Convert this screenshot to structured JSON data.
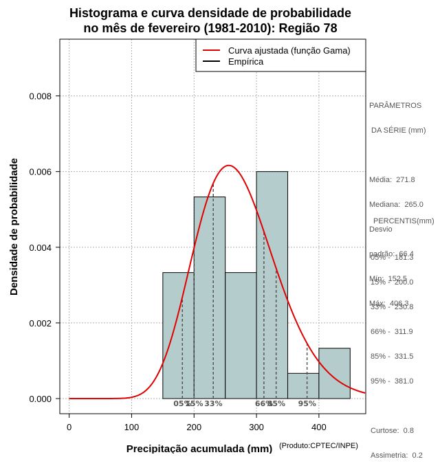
{
  "chart_data": {
    "type": "bar",
    "title_lines": [
      "Histograma e curva densidade de probabilidade",
      "no mês de fevereiro (1981-2010): Região 78"
    ],
    "xlabel": "Precipitação acumulada (mm)",
    "ylabel": "Densidade de probabilidade",
    "credit": "(Produto:CPTEC/INPE)",
    "xlim": [
      -15,
      475
    ],
    "ylim": [
      -0.0004,
      0.0095
    ],
    "xticks": [
      0,
      100,
      200,
      300,
      400
    ],
    "xtick_labels": [
      "0",
      "100",
      "200",
      "300",
      "400"
    ],
    "yticks": [
      0,
      0.002,
      0.004,
      0.006,
      0.008
    ],
    "ytick_labels": [
      "0.000",
      "0.002",
      "0.004",
      "0.006",
      "0.008"
    ],
    "grid": true,
    "bins": [
      {
        "from": 150,
        "to": 200,
        "density": 0.00333
      },
      {
        "from": 200,
        "to": 250,
        "density": 0.00533
      },
      {
        "from": 250,
        "to": 300,
        "density": 0.00333
      },
      {
        "from": 300,
        "to": 350,
        "density": 0.006
      },
      {
        "from": 350,
        "to": 400,
        "density": 0.000667
      },
      {
        "from": 400,
        "to": 450,
        "density": 0.00133
      }
    ],
    "bar_color": "#b4cccb",
    "fitted_curve": {
      "name": "Curva ajustada (função Gama)",
      "color": "#e00000",
      "mean": 271.8,
      "sd": 66.4,
      "x_range": [
        0,
        475
      ]
    },
    "empirical": {
      "name": "Empírica",
      "color": "#000000"
    },
    "legend_position": "top-right",
    "percentile_markers": [
      {
        "value": 181.3,
        "label": "05%"
      },
      {
        "value": 200.0,
        "label": "15%"
      },
      {
        "value": 230.8,
        "label": "33%"
      },
      {
        "value": 311.9,
        "label": "66%"
      },
      {
        "value": 331.5,
        "label": "85%"
      },
      {
        "value": 381.0,
        "label": "95%"
      }
    ]
  },
  "side_panel": {
    "params_title": [
      "PARÂMETROS",
      " DA SÉRIE (mm)"
    ],
    "params": [
      "Média:  271.8",
      "Mediana:  265.0",
      "Desvio",
      "padrão:  66.4",
      "Mín:  152.5",
      "Máx:  406.3"
    ],
    "percentis_title": "PERCENTIS(mm)",
    "percentis": [
      "05% -  181.3",
      "15% -  200.0",
      "33% -  230.8",
      "66% -  311.9",
      "85% -  331.5",
      "95% -  381.0"
    ],
    "stats": [
      "Curtose:  0.8",
      "Assimetria:  0.2"
    ]
  },
  "colors": {
    "grid": "#b0b0b0",
    "marker_line": "#555555",
    "frame": "#000000"
  }
}
